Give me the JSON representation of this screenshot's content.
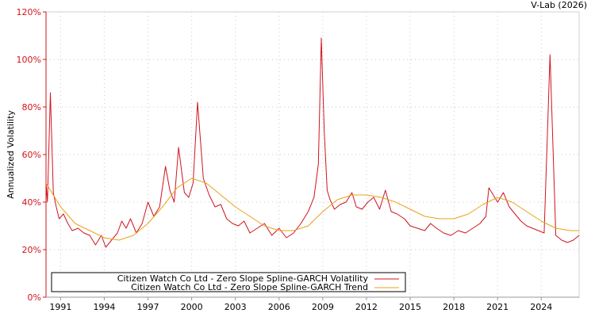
{
  "chart_data": {
    "type": "line",
    "title": "",
    "credit": "V-Lab (2026)",
    "ylabel": "Annualized Volatility",
    "xlabel": "",
    "ylim": [
      0,
      120
    ],
    "xlim": [
      1990.0,
      2026.6
    ],
    "y_ticks": [
      0,
      20,
      40,
      60,
      80,
      100,
      120
    ],
    "y_tick_labels": [
      "0%",
      "20%",
      "40%",
      "60%",
      "80%",
      "100%",
      "120%"
    ],
    "x_ticks": [
      1991,
      1994,
      1997,
      2000,
      2003,
      2006,
      2009,
      2012,
      2015,
      2018,
      2021,
      2024
    ],
    "x_tick_labels": [
      "1991",
      "1994",
      "1997",
      "2000",
      "2003",
      "2006",
      "2009",
      "2012",
      "2015",
      "2018",
      "2021",
      "2024"
    ],
    "grid": true,
    "legend_position": "bottom-left",
    "colors": {
      "volatility": "#d0141e",
      "trend": "#e8a317",
      "axis": "#d0141e"
    },
    "series": [
      {
        "name": "Citizen Watch Co Ltd - Zero Slope Spline-GARCH Volatility",
        "color": "#d0141e",
        "x": [
          1990.0,
          1990.1,
          1990.3,
          1990.5,
          1990.7,
          1990.9,
          1991.2,
          1991.5,
          1991.8,
          1992.2,
          1992.6,
          1993.0,
          1993.4,
          1993.8,
          1994.1,
          1994.5,
          1994.9,
          1995.2,
          1995.5,
          1995.8,
          1996.2,
          1996.6,
          1997.0,
          1997.4,
          1997.8,
          1998.2,
          1998.5,
          1998.8,
          1999.1,
          1999.5,
          1999.8,
          2000.1,
          2000.4,
          2000.8,
          2001.2,
          2001.6,
          2002.0,
          2002.4,
          2002.8,
          2003.2,
          2003.6,
          2004.0,
          2004.5,
          2005.0,
          2005.5,
          2006.0,
          2006.5,
          2007.0,
          2007.5,
          2008.0,
          2008.4,
          2008.7,
          2008.9,
          2009.1,
          2009.3,
          2009.5,
          2009.8,
          2010.2,
          2010.6,
          2011.0,
          2011.3,
          2011.7,
          2012.1,
          2012.5,
          2012.9,
          2013.3,
          2013.7,
          2014.1,
          2014.6,
          2015.0,
          2015.5,
          2016.0,
          2016.4,
          2016.8,
          2017.3,
          2017.8,
          2018.3,
          2018.8,
          2019.3,
          2019.8,
          2020.2,
          2020.4,
          2020.7,
          2021.0,
          2021.4,
          2021.8,
          2022.2,
          2022.6,
          2023.0,
          2023.4,
          2023.8,
          2024.2,
          2024.6,
          2025.0,
          2025.4,
          2025.8,
          2026.2,
          2026.6
        ],
        "values": [
          48,
          40,
          86,
          44,
          38,
          33,
          35,
          31,
          28,
          29,
          27,
          26,
          22,
          26,
          21,
          24,
          27,
          32,
          29,
          33,
          27,
          31,
          40,
          34,
          38,
          55,
          45,
          40,
          63,
          44,
          42,
          48,
          82,
          50,
          43,
          38,
          39,
          33,
          31,
          30,
          32,
          27,
          29,
          31,
          26,
          29,
          25,
          27,
          31,
          36,
          42,
          56,
          109,
          70,
          45,
          41,
          37,
          39,
          40,
          44,
          38,
          37,
          40,
          42,
          37,
          45,
          36,
          35,
          33,
          30,
          29,
          28,
          31,
          29,
          27,
          26,
          28,
          27,
          29,
          31,
          34,
          46,
          43,
          40,
          44,
          38,
          35,
          32,
          30,
          29,
          28,
          27,
          102,
          26,
          24,
          23,
          24,
          26
        ]
      },
      {
        "name": "Citizen Watch Co Ltd - Zero Slope Spline-GARCH Trend",
        "color": "#e8a317",
        "x": [
          1990.0,
          1991.0,
          1992.0,
          1993.0,
          1994.0,
          1995.0,
          1996.0,
          1997.0,
          1998.0,
          1999.0,
          2000.0,
          2001.0,
          2002.0,
          2003.0,
          2004.0,
          2005.0,
          2006.0,
          2007.0,
          2008.0,
          2009.0,
          2010.0,
          2011.0,
          2012.0,
          2013.0,
          2014.0,
          2015.0,
          2016.0,
          2017.0,
          2018.0,
          2019.0,
          2020.0,
          2021.0,
          2022.0,
          2023.0,
          2024.0,
          2025.0,
          2026.0,
          2026.6
        ],
        "values": [
          48,
          38,
          31,
          28,
          25,
          24,
          26,
          31,
          38,
          46,
          50,
          48,
          43,
          38,
          34,
          30,
          28,
          28,
          30,
          36,
          41,
          43,
          43,
          42,
          40,
          37,
          34,
          33,
          33,
          35,
          39,
          42,
          40,
          36,
          32,
          29,
          28,
          28
        ]
      }
    ]
  }
}
